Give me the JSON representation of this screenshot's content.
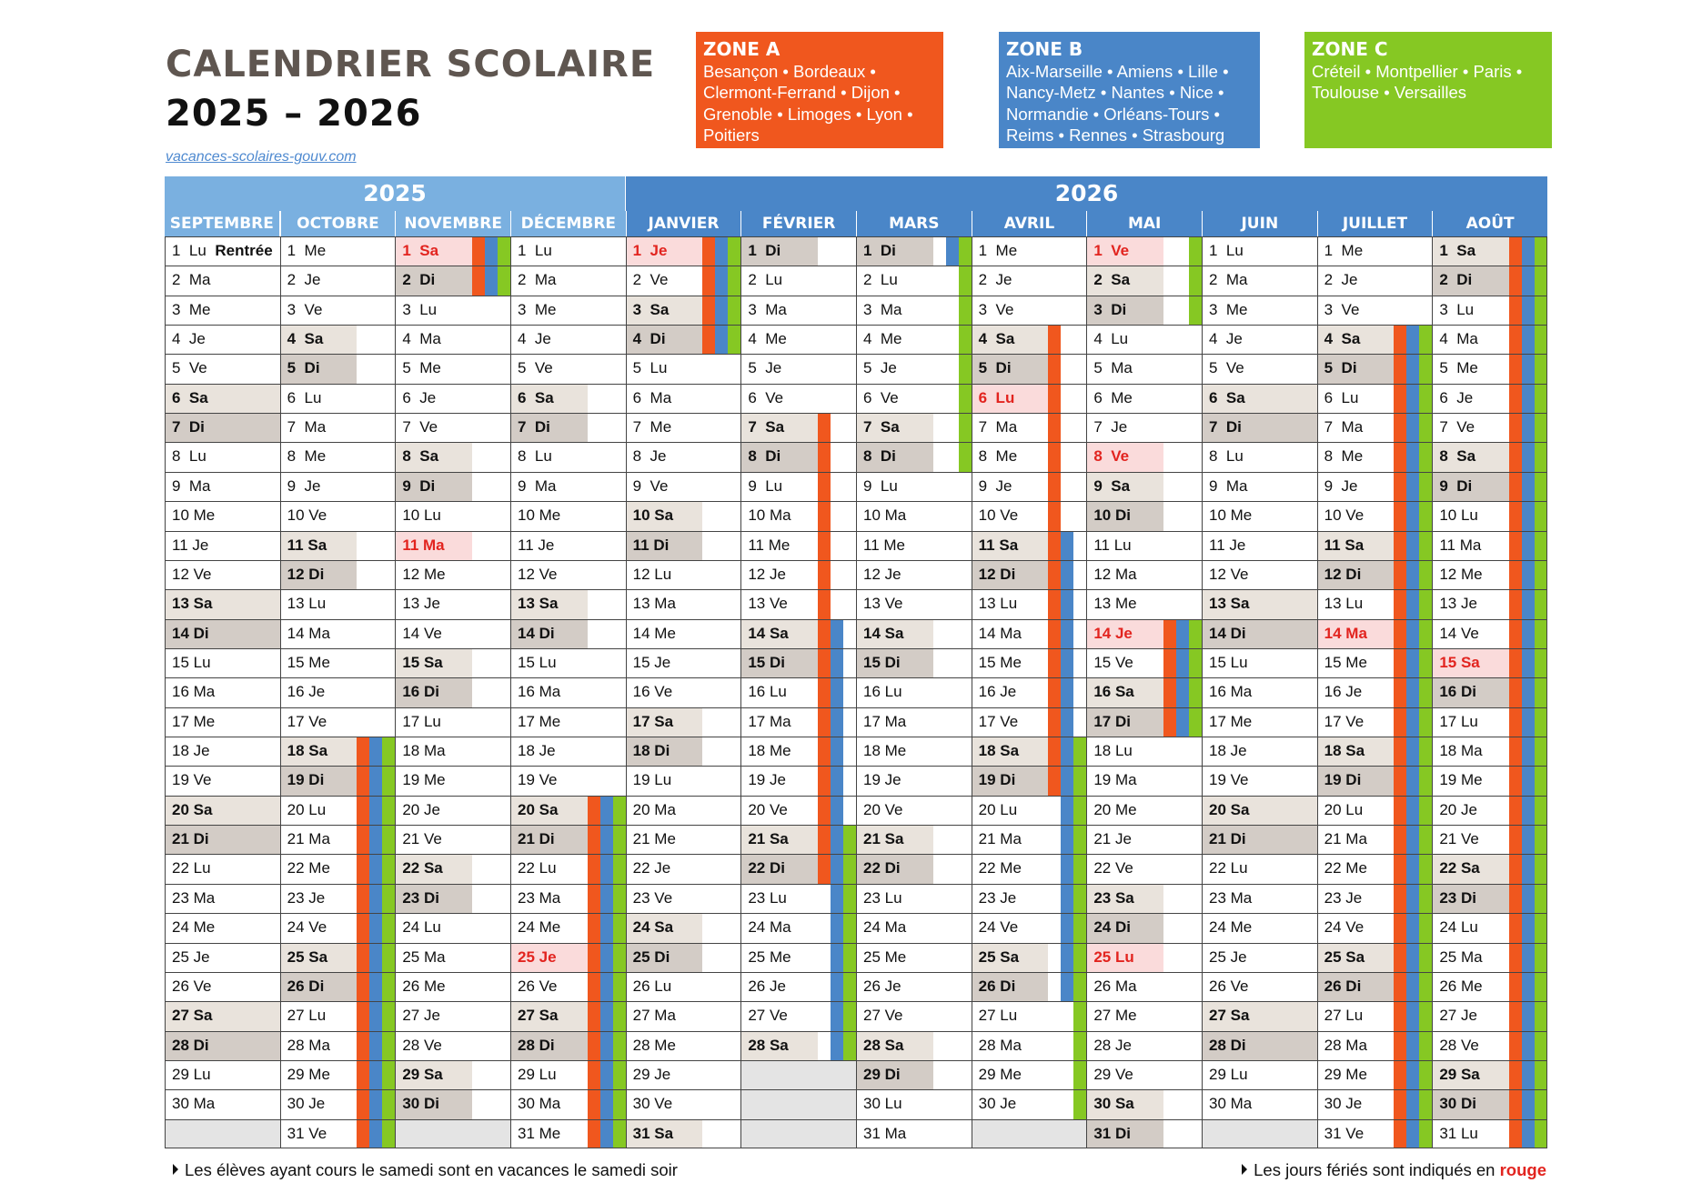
{
  "header": {
    "title_line1": "CALENDRIER SCOLAIRE",
    "title_line2": "2025 – 2026",
    "site": "vacances-scolaires-gouv.com"
  },
  "zones": [
    {
      "label": "ZONE A",
      "color": "#f0571e",
      "cities": "Besançon • Bordeaux • Clermont-Ferrand • Dijon • Grenoble • Limoges • Lyon • Poitiers"
    },
    {
      "label": "ZONE B",
      "color": "#4a86c8",
      "cities": "Aix-Marseille • Amiens • Lille • Nancy-Metz • Nantes • Nice • Normandie • Orléans-Tours • Reims • Rennes • Strasbourg"
    },
    {
      "label": "ZONE C",
      "color": "#86c823",
      "cities": "Créteil • Montpellier • Paris • Toulouse • Versailles"
    }
  ],
  "years": [
    {
      "label": "2025",
      "color": "#7ab0e0"
    },
    {
      "label": "2026",
      "color": "#4a86c8"
    }
  ],
  "months": [
    {
      "name": "SEPTEMBRE",
      "first_weekday": 1,
      "days": 30,
      "holidays": [],
      "notes": {
        "1": "Rentrée"
      },
      "vacations": []
    },
    {
      "name": "OCTOBRE",
      "first_weekday": 3,
      "days": 31,
      "holidays": [],
      "notes": {},
      "vacations": [
        {
          "from": 18,
          "to": 31,
          "zones": [
            "A",
            "B",
            "C"
          ]
        }
      ]
    },
    {
      "name": "NOVEMBRE",
      "first_weekday": 6,
      "days": 30,
      "holidays": [
        1,
        11
      ],
      "notes": {},
      "vacations": [
        {
          "from": 1,
          "to": 2,
          "zones": [
            "A",
            "B",
            "C"
          ]
        }
      ]
    },
    {
      "name": "DÉCEMBRE",
      "first_weekday": 1,
      "days": 31,
      "holidays": [
        25
      ],
      "notes": {},
      "vacations": [
        {
          "from": 20,
          "to": 31,
          "zones": [
            "A",
            "B",
            "C"
          ]
        }
      ]
    },
    {
      "name": "JANVIER",
      "first_weekday": 4,
      "days": 31,
      "holidays": [
        1
      ],
      "notes": {},
      "vacations": [
        {
          "from": 1,
          "to": 4,
          "zones": [
            "A",
            "B",
            "C"
          ]
        }
      ]
    },
    {
      "name": "FÉVRIER",
      "first_weekday": 7,
      "days": 28,
      "holidays": [],
      "notes": {},
      "vacations": [
        {
          "from": 7,
          "to": 22,
          "zones": [
            "A"
          ]
        },
        {
          "from": 14,
          "to": 28,
          "zones": [
            "B"
          ]
        },
        {
          "from": 21,
          "to": 28,
          "zones": [
            "C"
          ]
        }
      ]
    },
    {
      "name": "MARS",
      "first_weekday": 7,
      "days": 31,
      "holidays": [],
      "notes": {},
      "vacations": [
        {
          "from": 1,
          "to": 1,
          "zones": [
            "B",
            "C"
          ]
        },
        {
          "from": 1,
          "to": 8,
          "zones": [
            "C"
          ]
        }
      ]
    },
    {
      "name": "AVRIL",
      "first_weekday": 3,
      "days": 30,
      "holidays": [
        6
      ],
      "notes": {},
      "vacations": [
        {
          "from": 4,
          "to": 19,
          "zones": [
            "A"
          ]
        },
        {
          "from": 11,
          "to": 26,
          "zones": [
            "B"
          ]
        },
        {
          "from": 18,
          "to": 30,
          "zones": [
            "C"
          ]
        }
      ]
    },
    {
      "name": "MAI",
      "first_weekday": 5,
      "days": 31,
      "holidays": [
        1,
        8,
        14,
        25
      ],
      "notes": {},
      "vacations": [
        {
          "from": 1,
          "to": 3,
          "zones": [
            "C"
          ]
        },
        {
          "from": 14,
          "to": 17,
          "zones": [
            "A",
            "B",
            "C"
          ]
        }
      ]
    },
    {
      "name": "JUIN",
      "first_weekday": 1,
      "days": 30,
      "holidays": [],
      "notes": {},
      "vacations": []
    },
    {
      "name": "JUILLET",
      "first_weekday": 3,
      "days": 31,
      "holidays": [
        14
      ],
      "notes": {},
      "vacations": [
        {
          "from": 4,
          "to": 31,
          "zones": [
            "A",
            "B",
            "C"
          ]
        }
      ]
    },
    {
      "name": "AOÛT",
      "first_weekday": 6,
      "days": 31,
      "holidays": [
        15
      ],
      "notes": {},
      "vacations": [
        {
          "from": 1,
          "to": 31,
          "zones": [
            "A",
            "B",
            "C"
          ]
        }
      ]
    }
  ],
  "weekday_abbr": [
    "Lu",
    "Ma",
    "Me",
    "Je",
    "Ve",
    "Sa",
    "Di"
  ],
  "colors": {
    "saturday": "#e9e3dc",
    "sunday": "#d3ccc6",
    "holiday_bg": "#fadbdb",
    "holiday_text": "#e2241f"
  },
  "footer": {
    "left": "Les élèves ayant cours le samedi sont en vacances le samedi soir",
    "right_prefix": "Les jours fériés sont indiqués en ",
    "right_highlight": "rouge"
  }
}
